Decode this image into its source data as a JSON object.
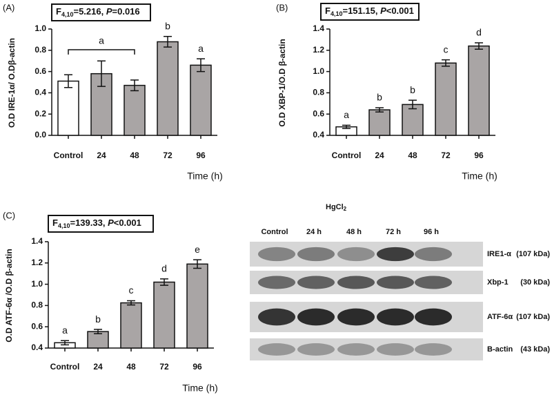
{
  "chart_data": [
    {
      "type": "bar",
      "panel": "(A)",
      "stat": [
        "F",
        "4,10",
        "=5.216, ",
        "P",
        "=0.016"
      ],
      "ylabel": "O.D IRE-1α/ O.Dβ-actin",
      "xlabel": "Time (h)",
      "categories": [
        "Control",
        "24",
        "48",
        "72",
        "96"
      ],
      "values": [
        0.51,
        0.58,
        0.47,
        0.88,
        0.66
      ],
      "errors": [
        0.06,
        0.12,
        0.05,
        0.05,
        0.06
      ],
      "letters": [
        null,
        "a",
        null,
        "b",
        "a"
      ],
      "bracket": [
        0,
        2
      ],
      "colors": [
        "#ffffff",
        "#a9a5a5",
        "#a9a5a5",
        "#a9a5a5",
        "#a9a5a5"
      ],
      "ylim": [
        0,
        1.0
      ],
      "yticks": [
        {
          "value": 0,
          "label": "0.0"
        },
        0.2,
        0.4,
        0.6,
        0.8,
        {
          "value": 1,
          "label": "1.0"
        }
      ]
    },
    {
      "type": "bar",
      "panel": "(B)",
      "stat": [
        "F",
        "4,10",
        "=151.15, ",
        "P",
        "<0.001"
      ],
      "ylabel": "O.D XBP-1/O.D β-actin",
      "xlabel": "Time (h)",
      "categories": [
        "Control",
        "24",
        "48",
        "72",
        "96"
      ],
      "values": [
        0.48,
        0.64,
        0.69,
        1.08,
        1.24
      ],
      "errors": [
        0.015,
        0.02,
        0.04,
        0.03,
        0.03
      ],
      "letters": [
        "a",
        "b",
        "b",
        "c",
        "d"
      ],
      "colors": [
        "#ffffff",
        "#a9a5a5",
        "#a9a5a5",
        "#a9a5a5",
        "#a9a5a5"
      ],
      "ylim": [
        0.4,
        1.4
      ],
      "yticks": [
        0.4,
        0.6,
        0.8,
        {
          "value": 1,
          "label": "1.0"
        },
        1.2,
        1.4
      ]
    },
    {
      "type": "bar",
      "panel": "(C)",
      "stat": [
        "F",
        "4,10",
        "=139.33, ",
        "P",
        "<0.001"
      ],
      "ylabel": "O.D ATF-6α /O.D β-actin",
      "xlabel": "Time (h)",
      "categories": [
        "Control",
        "24",
        "48",
        "72",
        "96"
      ],
      "values": [
        0.45,
        0.555,
        0.825,
        1.02,
        1.19
      ],
      "errors": [
        0.02,
        0.02,
        0.02,
        0.03,
        0.04
      ],
      "letters": [
        "a",
        "b",
        "c",
        "d",
        "e"
      ],
      "colors": [
        "#ffffff",
        "#a9a5a5",
        "#a9a5a5",
        "#a9a5a5",
        "#a9a5a5"
      ],
      "ylim": [
        0.4,
        1.4
      ],
      "yticks": [
        0.4,
        0.6,
        0.8,
        {
          "value": 1,
          "label": "1.0"
        },
        1.2,
        1.4
      ]
    }
  ],
  "blot": {
    "title": [
      "HgCl",
      "2"
    ],
    "lanes": [
      "Control",
      "24 h",
      "48 h",
      "72 h",
      "96 h"
    ],
    "bands": [
      {
        "name": "IRE1-α",
        "size": "(107 kDa)"
      },
      {
        "name": "Xbp-1",
        "size": "(30 kDa)"
      },
      {
        "name": "ATF-6α",
        "size": "(107 kDa)"
      },
      {
        "name": "B-actin",
        "size": "(43 kDa)"
      }
    ]
  }
}
